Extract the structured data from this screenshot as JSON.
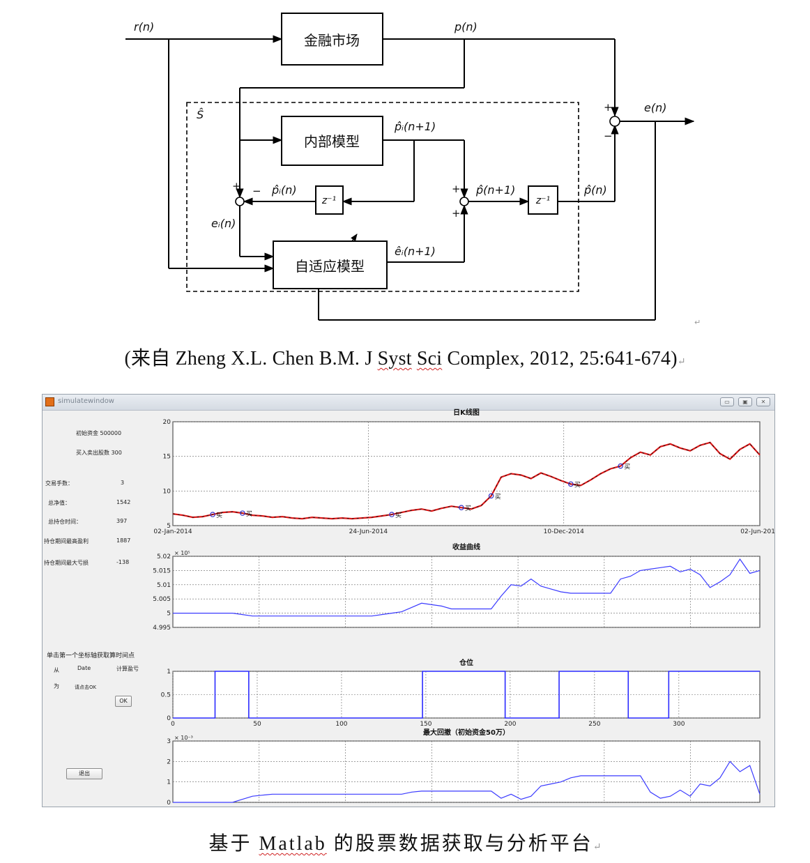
{
  "diagram": {
    "signals": {
      "r": "r(n)",
      "p": "p(n)",
      "e": "e(n)",
      "s_hat": "Ŝ",
      "pi_hat_next": "p̂ᵢ(n+1)",
      "pi_hat": "p̂ᵢ(n)",
      "p_hat_next": "p̂(n+1)",
      "p_hat": "p̂(n)",
      "ei": "eᵢ(n)",
      "ei_hat_next": "êᵢ(n+1)"
    },
    "blocks": {
      "market": "金融市场",
      "internal_model": "内部模型",
      "adaptive_model": "自适应模型",
      "delay1": "z⁻¹",
      "delay2": "z⁻¹"
    },
    "signs": {
      "plus": "+",
      "minus": "−"
    }
  },
  "caption1": "(来自 Zheng X.L. Chen B.M. J Syst Sci Complex, 2012, 25:641-674)",
  "caption1_parts": {
    "pre": "(来自 Zheng X.L. Chen B.M. J ",
    "w1": "Syst",
    "mid": " ",
    "w2": "Sci",
    "post": " Complex, 2012, 25:641-674)"
  },
  "para_mark": "↵",
  "window": {
    "title": "simulatewindow",
    "buttons": {
      "minimize": "▭",
      "maximize": "▣",
      "close": "✕"
    },
    "panel": {
      "initial_capital": "初始资金 500000",
      "buy_sell_shares": "买入卖出股数 300",
      "rows": [
        {
          "label": "交易手数：",
          "value": "3"
        },
        {
          "label": "总净值：",
          "value": "1542"
        },
        {
          "label": "总持仓时间：",
          "value": "397"
        },
        {
          "label": "持仓期间最高盈利",
          "value": "1887"
        },
        {
          "label": "持仓期间最大亏损",
          "value": "-138"
        }
      ],
      "instruction": "单击第一个坐标轴获取算时间点",
      "from": "从",
      "date": "Date",
      "calc": "计算盈亏",
      "to": "为",
      "confirm_hint": "请点击OK",
      "ok": "OK",
      "exit": "退出"
    },
    "charts": [
      {
        "type": "line",
        "title": "日K线图",
        "x_ticks": [
          "02-Jan-2014",
          "24-Jun-2014",
          "10-Dec-2014",
          "02-Jun-2015"
        ],
        "y_ticks": [
          "5",
          "10",
          "15",
          "20"
        ],
        "ylim": [
          5,
          20
        ],
        "buy_marker": "买",
        "y_points": [
          6.7,
          6.5,
          6.2,
          6.3,
          6.6,
          6.9,
          7.0,
          6.8,
          6.5,
          6.4,
          6.2,
          6.3,
          6.1,
          6.0,
          6.2,
          6.1,
          6.0,
          6.1,
          6.0,
          6.1,
          6.2,
          6.4,
          6.6,
          6.9,
          7.2,
          7.4,
          7.1,
          7.5,
          7.8,
          7.6,
          7.4,
          7.9,
          9.3,
          12.0,
          12.5,
          12.3,
          11.8,
          12.6,
          12.1,
          11.5,
          11.0,
          10.8,
          11.6,
          12.5,
          13.2,
          13.6,
          14.8,
          15.6,
          15.2,
          16.4,
          16.8,
          16.2,
          15.8,
          16.6,
          17.0,
          15.4,
          14.6,
          16.0,
          16.8,
          15.2
        ]
      },
      {
        "type": "line",
        "title": "收益曲线",
        "y_ticks": [
          "4.995",
          "5",
          "5.005",
          "5.01",
          "5.015",
          "5.02"
        ],
        "multiplier": "× 10⁵",
        "ylim": [
          4.995,
          5.02
        ],
        "y_points": [
          5.0,
          5.0,
          5.0,
          5.0,
          5.0,
          5.0,
          5.0,
          4.9995,
          4.999,
          4.999,
          4.999,
          4.999,
          4.999,
          4.999,
          4.999,
          4.999,
          4.999,
          4.999,
          4.999,
          4.999,
          4.999,
          4.9995,
          5.0,
          5.0005,
          5.002,
          5.0035,
          5.003,
          5.0025,
          5.0015,
          5.0015,
          5.0015,
          5.0015,
          5.0015,
          5.006,
          5.01,
          5.0095,
          5.012,
          5.0095,
          5.0085,
          5.0075,
          5.007,
          5.007,
          5.007,
          5.007,
          5.007,
          5.012,
          5.013,
          5.015,
          5.0155,
          5.016,
          5.0165,
          5.0145,
          5.0155,
          5.0135,
          5.009,
          5.011,
          5.0135,
          5.019,
          5.014,
          5.015
        ]
      },
      {
        "type": "line",
        "title": "仓位",
        "y_ticks": [
          "0",
          "0.5",
          "1"
        ],
        "x_ticks": [
          "0",
          "50",
          "100",
          "150",
          "200",
          "250",
          "300"
        ],
        "xlim": [
          0,
          348
        ],
        "ylim": [
          0,
          1
        ],
        "segments": [
          [
            0,
            25,
            0
          ],
          [
            25,
            45,
            1
          ],
          [
            45,
            148,
            0
          ],
          [
            148,
            197,
            1
          ],
          [
            197,
            229,
            0
          ],
          [
            229,
            270,
            1
          ],
          [
            270,
            294,
            0
          ],
          [
            294,
            348,
            1
          ]
        ]
      },
      {
        "type": "line",
        "title": "最大回撤（初始资金50万）",
        "multiplier": "× 10⁻³",
        "y_ticks": [
          "0",
          "1",
          "2",
          "3"
        ],
        "ylim": [
          0,
          3
        ],
        "y_points": [
          0,
          0,
          0,
          0,
          0,
          0,
          0,
          0.15,
          0.3,
          0.35,
          0.4,
          0.4,
          0.4,
          0.4,
          0.4,
          0.4,
          0.4,
          0.4,
          0.4,
          0.4,
          0.4,
          0.4,
          0.4,
          0.4,
          0.5,
          0.55,
          0.55,
          0.55,
          0.55,
          0.55,
          0.55,
          0.55,
          0.55,
          0.2,
          0.4,
          0.15,
          0.3,
          0.8,
          0.9,
          1.0,
          1.2,
          1.3,
          1.3,
          1.3,
          1.3,
          1.3,
          1.3,
          1.3,
          0.5,
          0.2,
          0.3,
          0.6,
          0.3,
          0.9,
          0.8,
          1.2,
          2.0,
          1.5,
          1.8,
          0.4
        ]
      }
    ]
  },
  "caption2_parts": {
    "pre": "基于 ",
    "word": "Matlab",
    "post": " 的股票数据获取与分析平台"
  }
}
